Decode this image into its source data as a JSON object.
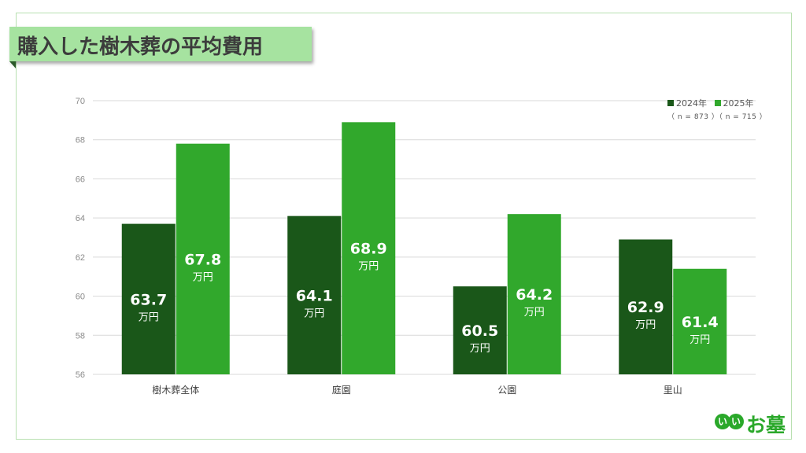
{
  "title": "購入した樹木葬の平均費用",
  "logo": {
    "circle1": "い",
    "circle2": "い",
    "text": "お墓"
  },
  "colors": {
    "s2024": "#1a5719",
    "s2025": "#31a82c",
    "grid": "#d9d9d9",
    "frame": "#b8e0b0",
    "title_bg": "#a6e3a0"
  },
  "legend": {
    "label_2024": "2024年",
    "label_2025": "2025年",
    "n_2024": "（ n = 873 ）",
    "n_2025": "（ n = 715 ）"
  },
  "chart_data": {
    "type": "bar",
    "title": "購入した樹木葬の平均費用",
    "categories": [
      "樹木葬全体",
      "庭園",
      "公園",
      "里山"
    ],
    "series": [
      {
        "name": "2024年",
        "values": [
          63.7,
          64.1,
          60.5,
          62.9
        ],
        "color": "#1a5719"
      },
      {
        "name": "2025年",
        "values": [
          67.8,
          68.9,
          64.2,
          61.4
        ],
        "color": "#31a82c"
      }
    ],
    "unit": "万円",
    "ylim": [
      56,
      70
    ],
    "yticks": [
      56,
      58,
      60,
      62,
      64,
      66,
      68,
      70
    ],
    "grid": true,
    "legend_position": "top-right"
  }
}
